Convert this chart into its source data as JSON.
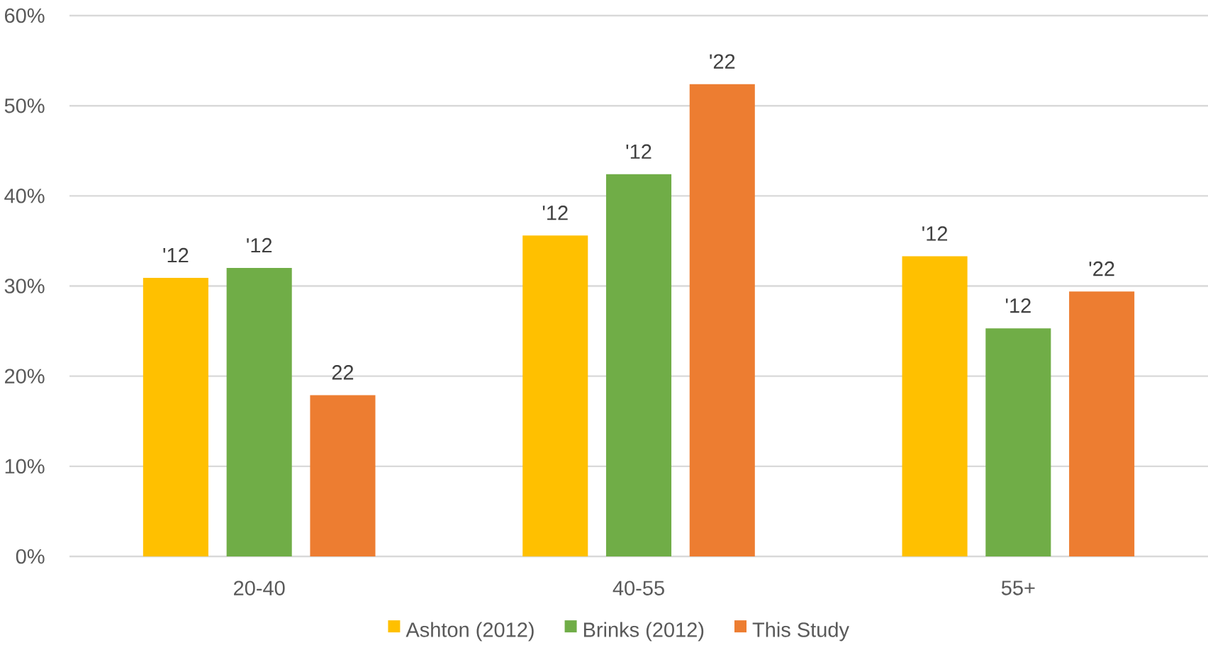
{
  "chart_data": {
    "type": "bar",
    "categories": [
      "20-40",
      "40-55",
      "55+"
    ],
    "series": [
      {
        "name": "Ashton (2012)",
        "color": "#ffc000",
        "values": [
          30.9,
          35.6,
          33.3
        ]
      },
      {
        "name": "Brinks (2012)",
        "color": "#70ad47",
        "values": [
          32.0,
          42.4,
          25.3
        ]
      },
      {
        "name": "This Study",
        "color": "#ed7d31",
        "values": [
          17.9,
          52.4,
          29.4
        ]
      }
    ],
    "annotations": [
      "'12",
      "'12",
      "22",
      "'12",
      "'12",
      "'22",
      "'12",
      "'12",
      "'22"
    ],
    "ylim": [
      0,
      60
    ],
    "yticks": [
      {
        "value": 0,
        "label": "0%"
      },
      {
        "value": 10,
        "label": "10%"
      },
      {
        "value": 20,
        "label": "20%"
      },
      {
        "value": 30,
        "label": "30%"
      },
      {
        "value": 40,
        "label": "40%"
      },
      {
        "value": 50,
        "label": "50%"
      },
      {
        "value": 60,
        "label": "60%"
      }
    ],
    "grid": "y",
    "legend": "bottom"
  }
}
